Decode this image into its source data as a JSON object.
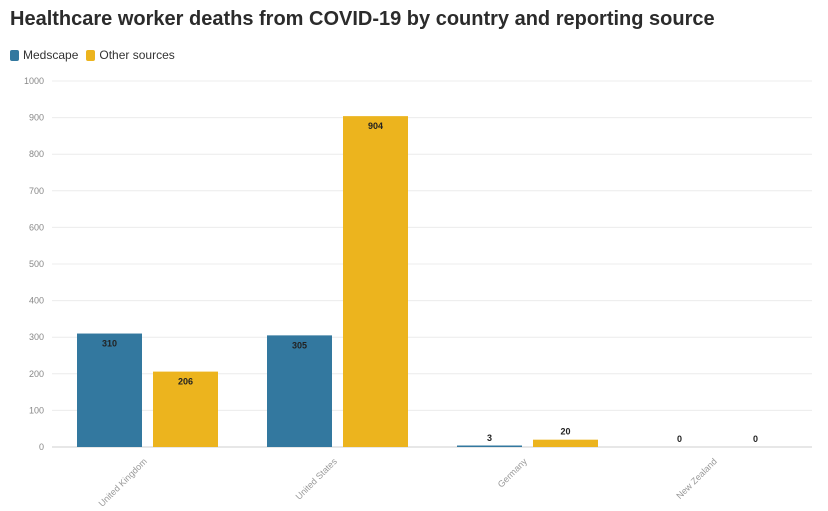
{
  "chart_data": {
    "type": "bar",
    "title": "Healthcare worker deaths from COVID-19 by country and reporting source",
    "categories": [
      "United Kingdom",
      "United States",
      "Germany",
      "New Zealand"
    ],
    "series": [
      {
        "name": "Medscape",
        "color": "#33789f",
        "values": [
          310,
          305,
          3,
          0
        ]
      },
      {
        "name": "Other sources",
        "color": "#ecb41e",
        "values": [
          206,
          904,
          20,
          0
        ]
      }
    ],
    "ylim": [
      0,
      1000
    ],
    "yticks": [
      0,
      100,
      200,
      300,
      400,
      500,
      600,
      700,
      800,
      900,
      1000
    ],
    "xlabel": "",
    "ylabel": "",
    "legend": "top-left",
    "grid": true
  }
}
